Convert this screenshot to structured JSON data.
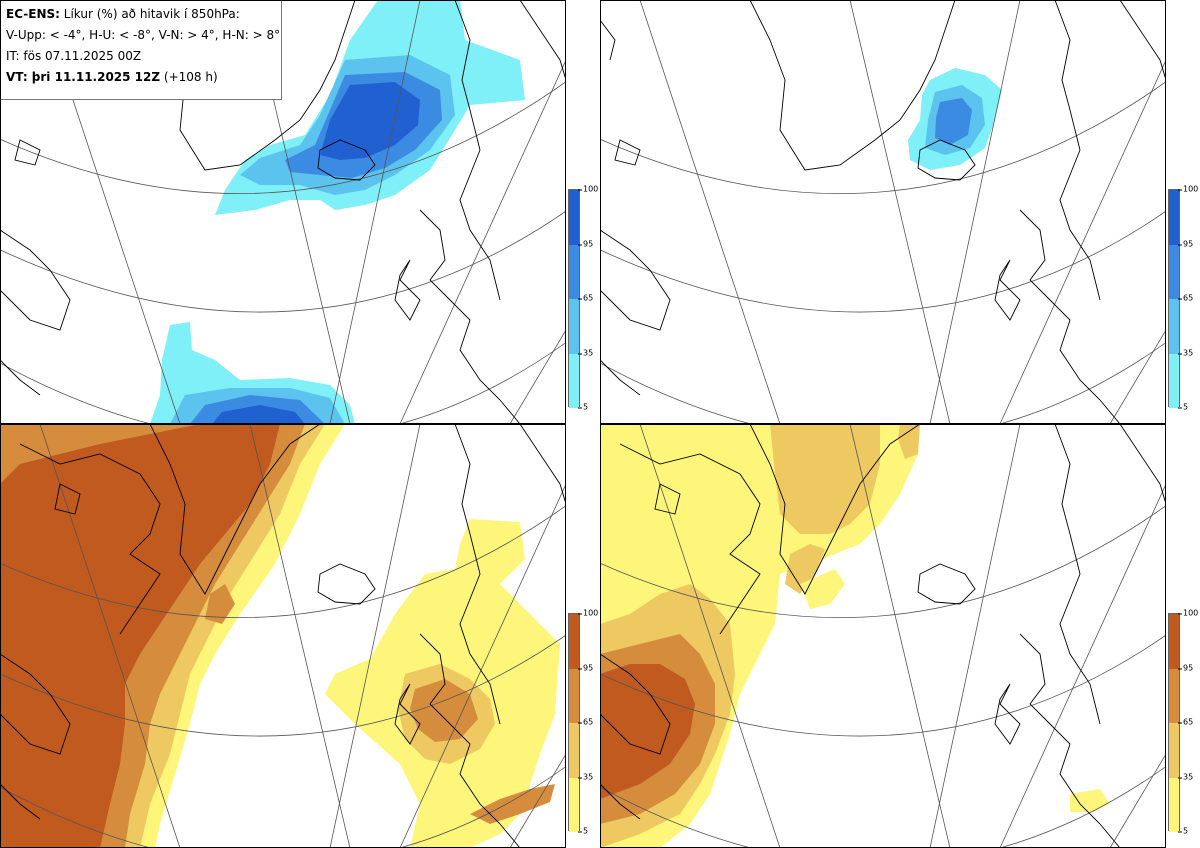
{
  "header": {
    "model": "EC-ENS:",
    "title": "Líkur (%) að hitavik í 850hPa:",
    "thresholds": "V-Upp: < -4°, H-U: < -8°, V-N: > 4°, H-N: > 8°",
    "init_time": "IT: fös 07.11.2025 00Z",
    "valid_label": "VT: þri 11.11.2025 12Z",
    "valid_offset": "(+108 h)"
  },
  "panels": [
    {
      "id": "top-left",
      "variable": "< -4°",
      "palette": "blue"
    },
    {
      "id": "top-right",
      "variable": "< -8°",
      "palette": "blue"
    },
    {
      "id": "bottom-left",
      "variable": "> 4°",
      "palette": "orange"
    },
    {
      "id": "bottom-right",
      "variable": "> 8°",
      "palette": "orange"
    }
  ],
  "colorbar": {
    "ticks": [
      "100",
      "95",
      "65",
      "35",
      "5"
    ],
    "blue": [
      "#2060d0",
      "#3c8be3",
      "#5bc3ee",
      "#7ff0f8"
    ],
    "orange": [
      "#c05a1e",
      "#d58d3d",
      "#eec860",
      "#fdf67a"
    ]
  },
  "colors": {
    "blue_levels": [
      "#7ff0f8",
      "#5bc3ee",
      "#3c8be3",
      "#2060d0"
    ],
    "orange_levels": [
      "#fdf67a",
      "#eec860",
      "#d58d3d",
      "#c05a1e"
    ]
  }
}
